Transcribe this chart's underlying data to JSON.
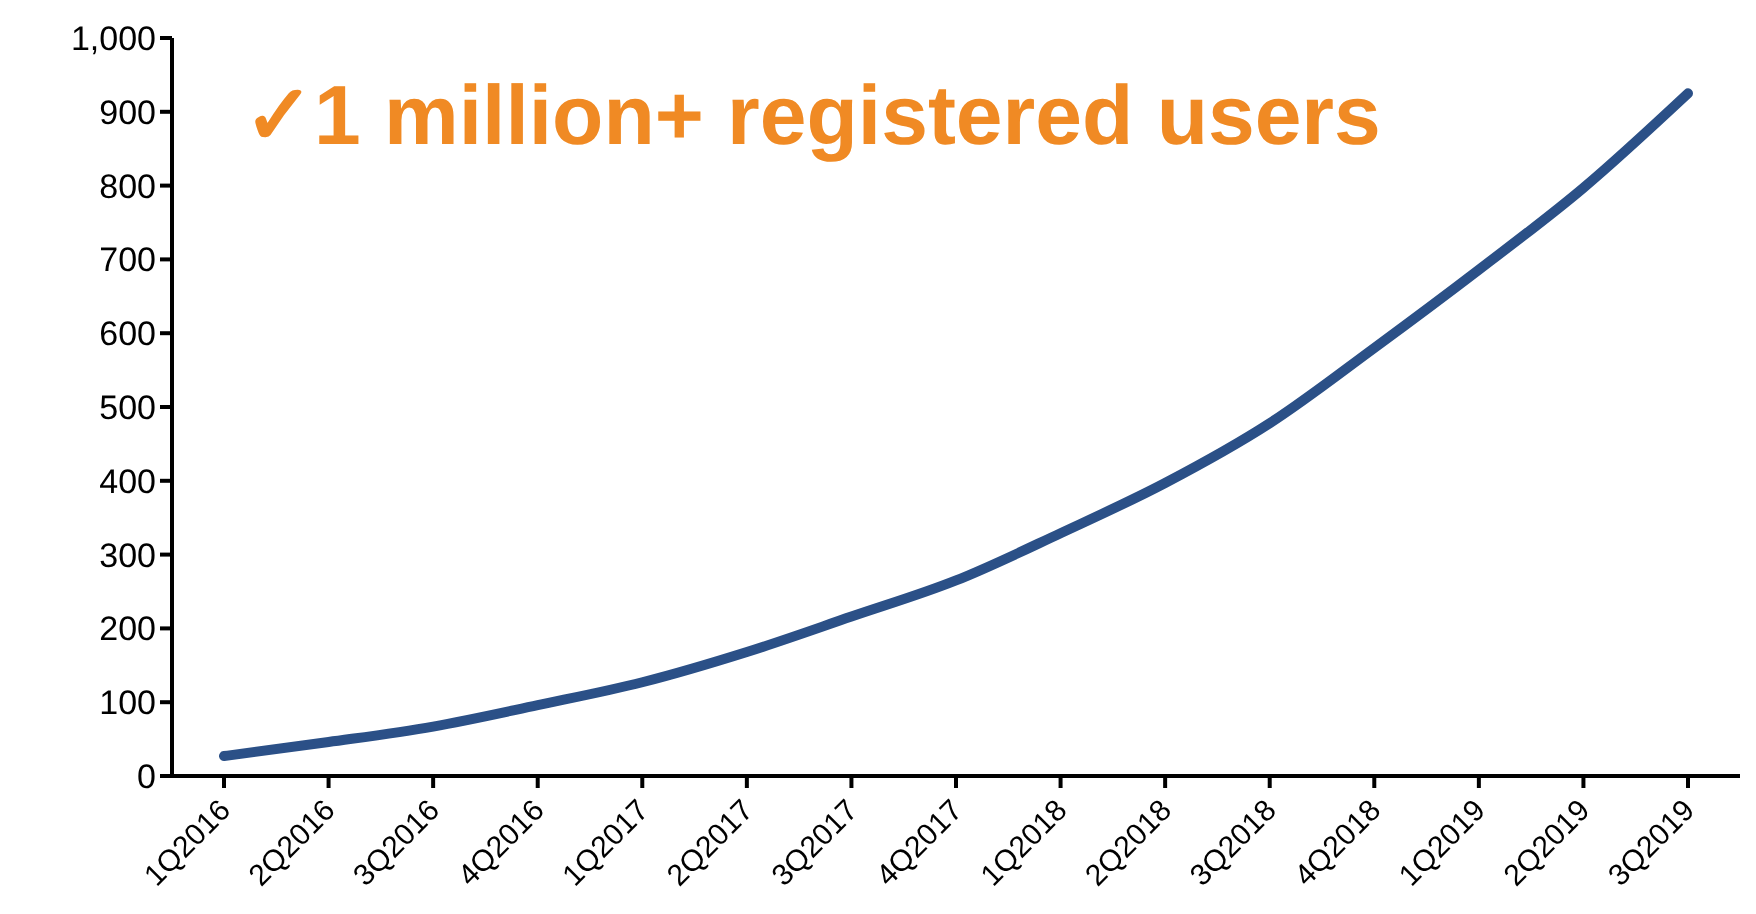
{
  "chart_data": {
    "type": "line",
    "categories": [
      "1Q2016",
      "2Q2016",
      "3Q2016",
      "4Q2016",
      "1Q2017",
      "2Q2017",
      "3Q2017",
      "4Q2017",
      "1Q2018",
      "2Q2018",
      "3Q2018",
      "4Q2018",
      "1Q2019",
      "2Q2019",
      "3Q2019"
    ],
    "series": [
      {
        "color": "#2b5087",
        "values": [
          27,
          46,
          67,
          96,
          127,
          168,
          216,
          265,
          329,
          397,
          478,
          580,
          686,
          797,
          925
        ]
      }
    ],
    "ylim": [
      0,
      1000
    ],
    "yticks": [
      0,
      100,
      200,
      300,
      400,
      500,
      600,
      700,
      800,
      900,
      {
        "value": 1000,
        "label": "1,000"
      }
    ],
    "annotations": [
      "✓1 million+ registered users"
    ],
    "grid": false,
    "marker": "none",
    "line_style": "solid"
  }
}
